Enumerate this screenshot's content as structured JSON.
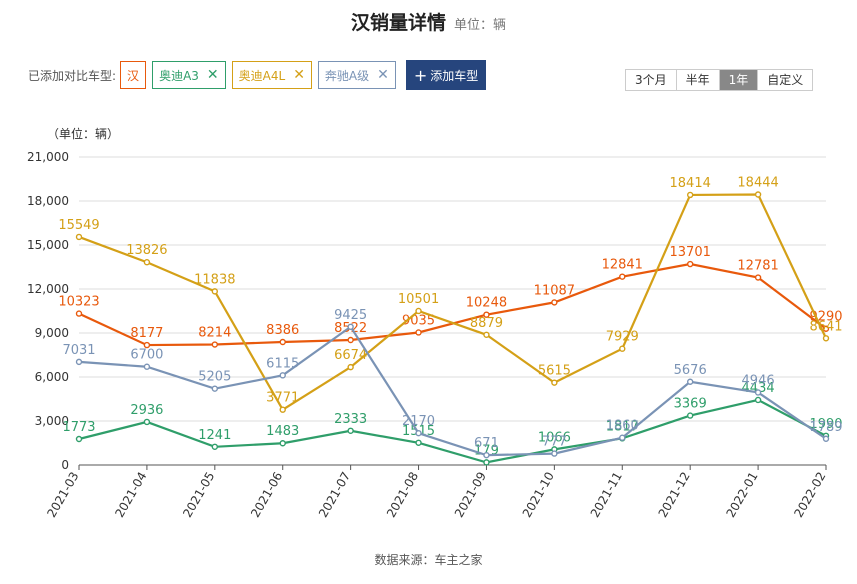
{
  "header": {
    "title": "汉销量详情",
    "subtitle": "单位：辆"
  },
  "toolbar": {
    "label": "已添加对比车型:",
    "tags": [
      {
        "name": "汉",
        "color": "#e8590c",
        "removable": false
      },
      {
        "name": "奥迪A3",
        "color": "#2f9e6a",
        "removable": true
      },
      {
        "name": "奥迪A4L",
        "color": "#d4a017",
        "removable": true
      },
      {
        "name": "奔驰A级",
        "color": "#7a93b5",
        "removable": true
      }
    ],
    "remove_glyph": "✕",
    "add_label": "添加车型",
    "add_icon": "+"
  },
  "range": {
    "options": [
      "3个月",
      "半年",
      "1年",
      "自定义"
    ],
    "active": "1年"
  },
  "footer": "数据来源：车主之家",
  "chart_data": {
    "type": "line",
    "ylabel": "（单位：辆）",
    "ylim": [
      0,
      21000
    ],
    "yticks": [
      0,
      3000,
      6000,
      9000,
      12000,
      15000,
      18000,
      21000
    ],
    "ytick_labels": [
      "0",
      "3,000",
      "6,000",
      "9,000",
      "12,000",
      "15,000",
      "18,000",
      "21,000"
    ],
    "grid": true,
    "categories": [
      "2021-03",
      "2021-04",
      "2021-05",
      "2021-06",
      "2021-07",
      "2021-08",
      "2021-09",
      "2021-10",
      "2021-11",
      "2021-12",
      "2022-01",
      "2022-02"
    ],
    "series": [
      {
        "name": "汉",
        "color": "#e8590c",
        "values": [
          10323,
          8177,
          8214,
          8386,
          8522,
          9035,
          10248,
          11087,
          12841,
          13701,
          12781,
          9290
        ]
      },
      {
        "name": "奥迪A3",
        "color": "#2f9e6a",
        "values": [
          1773,
          2936,
          1241,
          1483,
          2333,
          1515,
          179,
          1066,
          1817,
          3369,
          4434,
          1990
        ]
      },
      {
        "name": "奥迪A4L",
        "color": "#d4a017",
        "values": [
          15549,
          13826,
          11838,
          3771,
          6674,
          10501,
          8879,
          5615,
          7929,
          18414,
          18444,
          8641
        ]
      },
      {
        "name": "奔驰A级",
        "color": "#7a93b5",
        "values": [
          7031,
          6700,
          5205,
          6115,
          9425,
          2170,
          671,
          777,
          1860,
          5676,
          4946,
          1789
        ]
      }
    ]
  }
}
